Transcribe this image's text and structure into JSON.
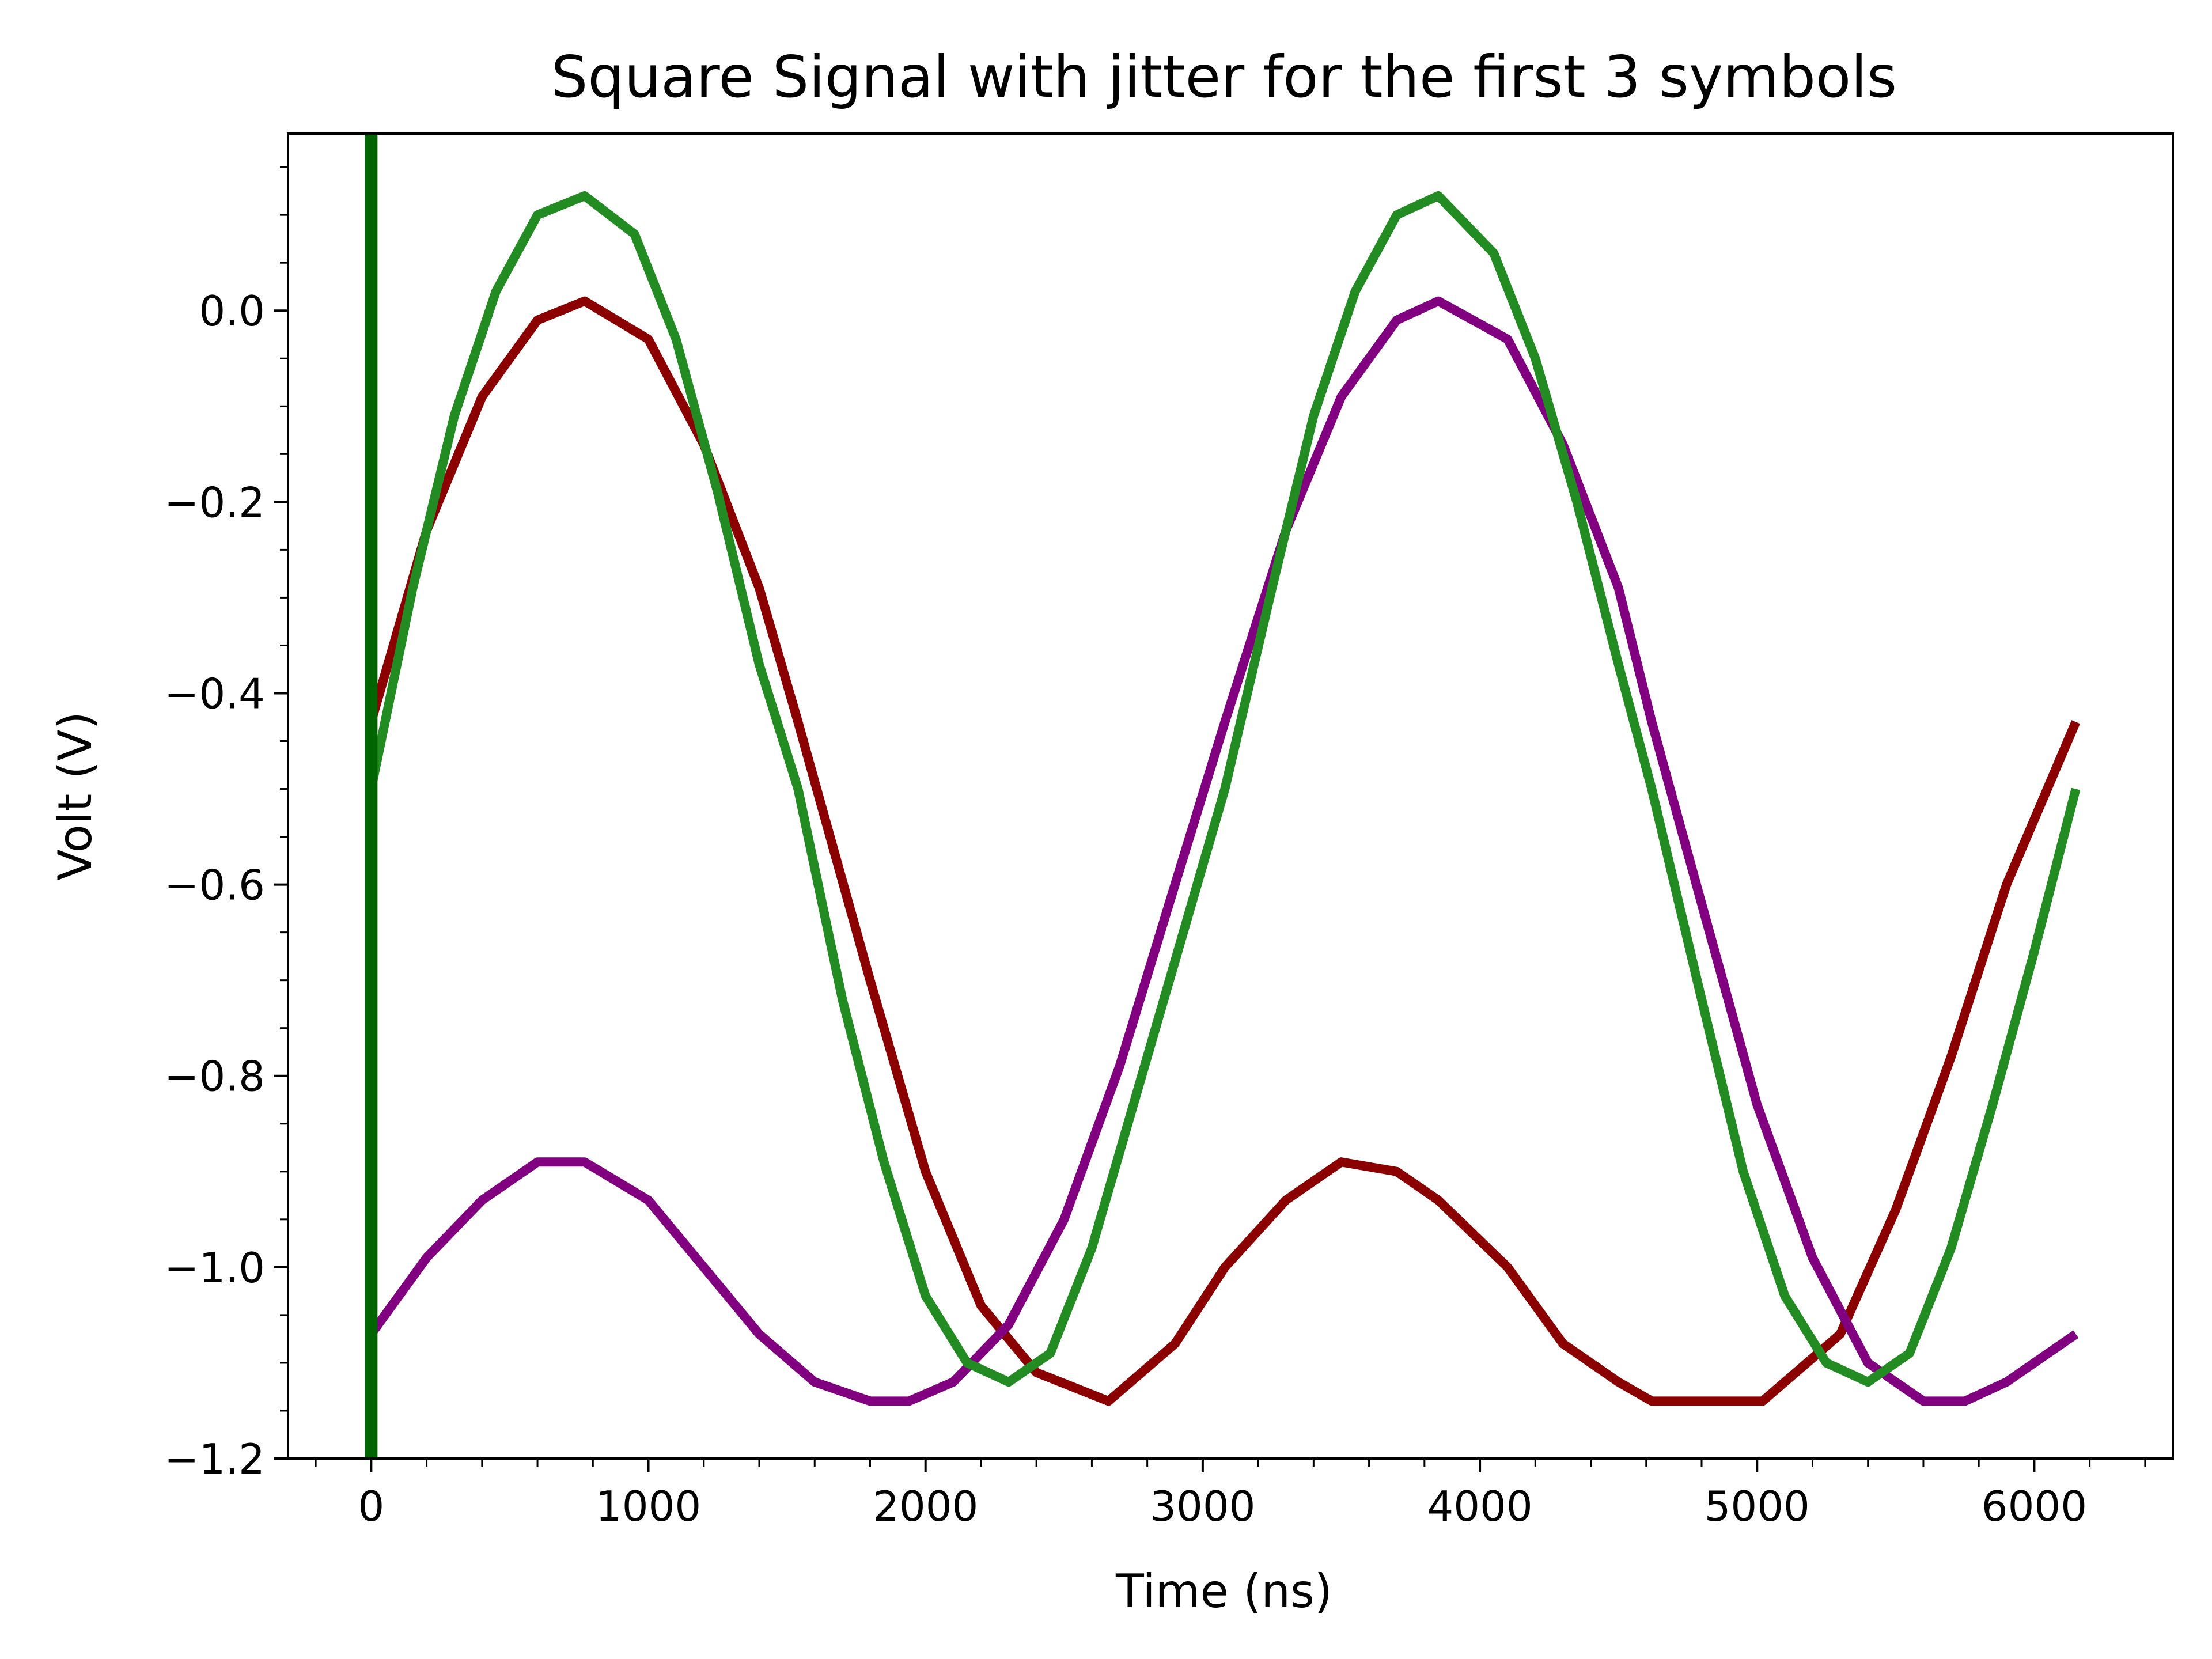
{
  "chart_data": {
    "type": "line",
    "title": "Square Signal with jitter for the first 3 symbols",
    "xlabel": "Time (ns)",
    "ylabel": "Volt (V)",
    "xlim": [
      -300,
      6500
    ],
    "ylim": [
      -1.2,
      0.185
    ],
    "x_ticks": [
      0,
      1000,
      2000,
      3000,
      4000,
      5000,
      6000
    ],
    "x_tick_labels": [
      "0",
      "1000",
      "2000",
      "3000",
      "4000",
      "5000",
      "6000"
    ],
    "y_ticks": [
      -1.2,
      -1.0,
      -0.8,
      -0.6,
      -0.4,
      -0.2,
      0.0
    ],
    "y_tick_labels": [
      "−1.2",
      "−1.0",
      "−0.8",
      "−0.6",
      "−0.4",
      "−0.2",
      "0.0"
    ],
    "grid": false,
    "legend": "none",
    "series": [
      {
        "color": "#8b0000",
        "x": [
          0,
          200,
          400,
          600,
          770,
          1000,
          1200,
          1400,
          1540,
          1800,
          2000,
          2200,
          2400,
          2660,
          2900,
          3080,
          3300,
          3500,
          3700,
          3850,
          4100,
          4300,
          4500,
          4620,
          4800,
          5020,
          5300,
          5500,
          5700,
          5900,
          6150
        ],
        "y": [
          -0.43,
          -0.23,
          -0.09,
          -0.01,
          0.01,
          -0.03,
          -0.14,
          -0.29,
          -0.43,
          -0.7,
          -0.9,
          -1.04,
          -1.11,
          -1.14,
          -1.08,
          -1.0,
          -0.93,
          -0.89,
          -0.9,
          -0.93,
          -1.0,
          -1.08,
          -1.12,
          -1.14,
          -1.14,
          -1.14,
          -1.07,
          -0.94,
          -0.78,
          -0.6,
          -0.43
        ]
      },
      {
        "color": "#800080",
        "x": [
          0,
          200,
          400,
          600,
          770,
          1000,
          1200,
          1400,
          1600,
          1800,
          1940,
          2100,
          2300,
          2500,
          2700,
          2900,
          3080,
          3300,
          3500,
          3700,
          3850,
          4100,
          4300,
          4500,
          4620,
          4800,
          5000,
          5200,
          5400,
          5600,
          5750,
          5900,
          6150
        ],
        "y": [
          -1.07,
          -0.99,
          -0.93,
          -0.89,
          -0.89,
          -0.93,
          -1.0,
          -1.07,
          -1.12,
          -1.14,
          -1.14,
          -1.12,
          -1.06,
          -0.95,
          -0.79,
          -0.6,
          -0.43,
          -0.23,
          -0.09,
          -0.01,
          0.01,
          -0.03,
          -0.14,
          -0.29,
          -0.43,
          -0.62,
          -0.83,
          -0.99,
          -1.1,
          -1.14,
          -1.14,
          -1.12,
          -1.07
        ]
      },
      {
        "color": "#228b22",
        "x": [
          0,
          150,
          300,
          450,
          600,
          770,
          950,
          1100,
          1250,
          1400,
          1540,
          1700,
          1850,
          2000,
          2150,
          2300,
          2450,
          2600,
          2750,
          2900,
          3080,
          3250,
          3400,
          3550,
          3700,
          3850,
          4050,
          4200,
          4350,
          4500,
          4620,
          4800,
          4950,
          5100,
          5250,
          5400,
          5550,
          5700,
          5850,
          6000,
          6150
        ],
        "y": [
          -0.5,
          -0.29,
          -0.11,
          0.02,
          0.1,
          0.12,
          0.08,
          -0.03,
          -0.19,
          -0.37,
          -0.5,
          -0.72,
          -0.89,
          -1.03,
          -1.1,
          -1.12,
          -1.09,
          -0.98,
          -0.83,
          -0.68,
          -0.5,
          -0.29,
          -0.11,
          0.02,
          0.1,
          0.12,
          0.06,
          -0.05,
          -0.2,
          -0.37,
          -0.5,
          -0.72,
          -0.9,
          -1.03,
          -1.1,
          -1.12,
          -1.09,
          -0.98,
          -0.83,
          -0.67,
          -0.5
        ]
      },
      {
        "color": "#006400",
        "x": [
          0,
          0
        ],
        "y": [
          -1.2,
          0.185
        ]
      }
    ]
  }
}
